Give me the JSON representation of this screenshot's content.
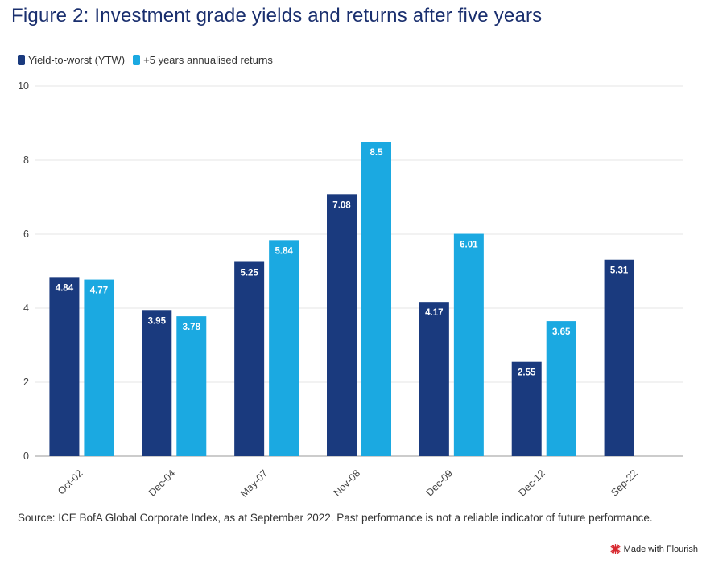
{
  "title": "Figure 2: Investment grade yields and returns after five years",
  "source": "Source: ICE BofA Global Corporate Index, as at September 2022. Past performance is not a reliable indicator of future performance.",
  "credit": "Made with Flourish",
  "colors": {
    "ytw": "#1a3a7e",
    "returns": "#1ba9e1",
    "grid": "#e6e6e6",
    "axis": "#888888",
    "title": "#1a2f6e"
  },
  "chart_data": {
    "type": "bar",
    "title": "Figure 2: Investment grade yields and returns after five years",
    "categories": [
      "Oct-02",
      "Dec-04",
      "May-07",
      "Nov-08",
      "Dec-09",
      "Dec-12",
      "Sep-22"
    ],
    "series": [
      {
        "name": "Yield-to-worst (YTW)",
        "values": [
          4.84,
          3.95,
          5.25,
          7.08,
          4.17,
          2.55,
          5.31
        ]
      },
      {
        "name": "+5 years annualised returns",
        "values": [
          4.77,
          3.78,
          5.84,
          8.5,
          6.01,
          3.65,
          null
        ]
      }
    ],
    "ylim": [
      0,
      10
    ],
    "yticks": [
      0,
      2,
      4,
      6,
      8,
      10
    ],
    "xlabel": "",
    "ylabel": "",
    "grid": true,
    "legend": "top-left"
  }
}
